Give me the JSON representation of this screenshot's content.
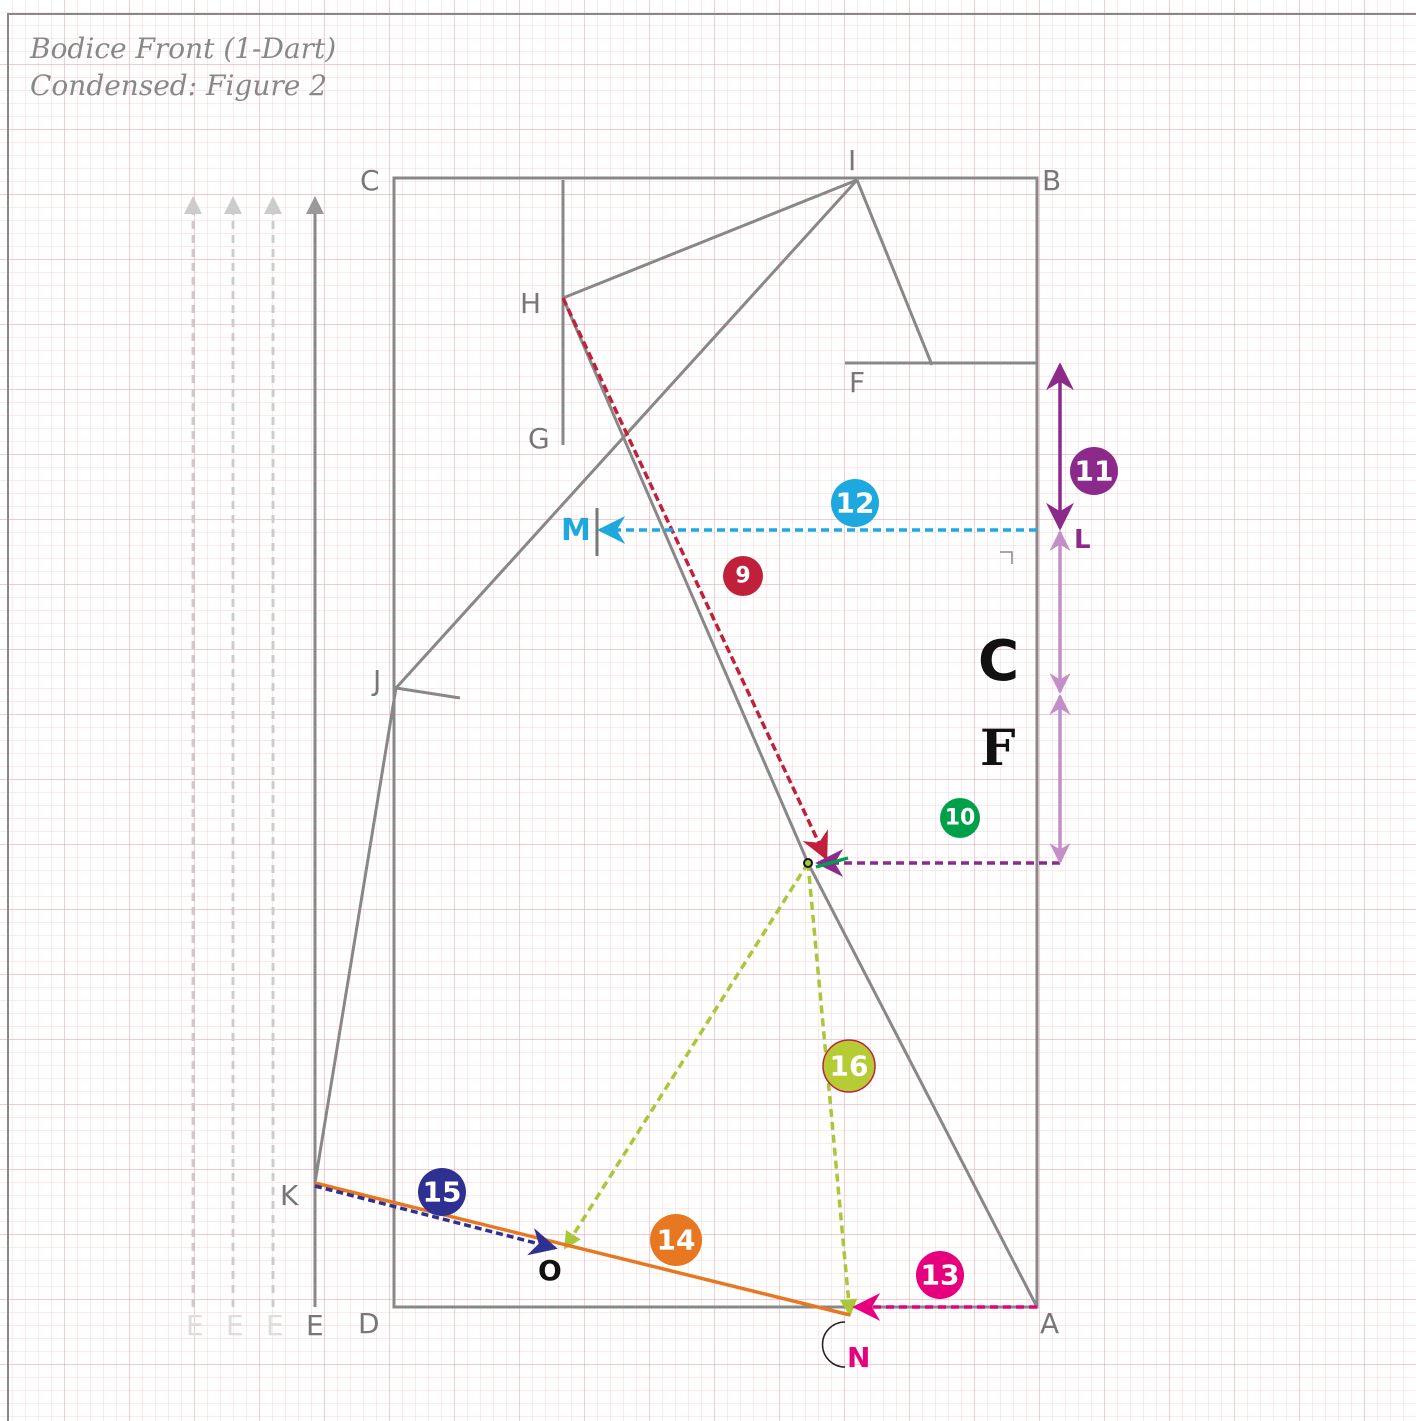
{
  "header": {
    "title": [
      "Bodice Front (1-Dart)",
      "Condensed: Figure 2"
    ]
  },
  "points": [
    "C",
    "B",
    "I",
    "H",
    "F",
    "G",
    "M",
    "L",
    "J",
    "K",
    "O",
    "N",
    "E",
    "E",
    "E",
    "E",
    "D",
    "A"
  ],
  "steps": [
    "9",
    "10",
    "11",
    "12",
    "13",
    "14",
    "15",
    "16"
  ],
  "markers": [
    "C",
    "F"
  ]
}
